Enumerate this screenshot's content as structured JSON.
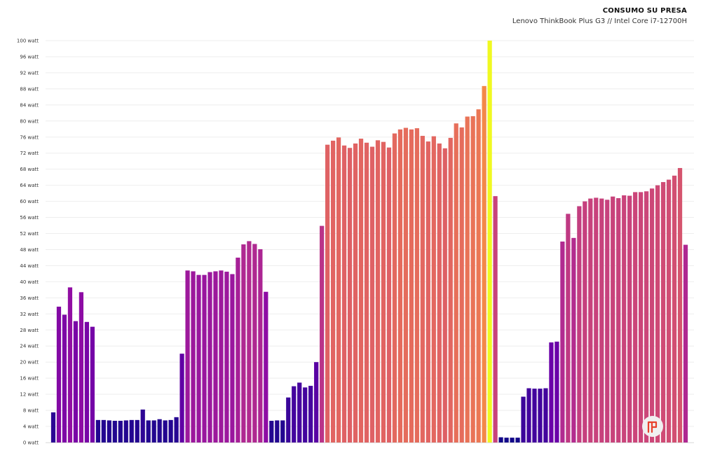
{
  "chart_data": {
    "type": "bar",
    "title": "CONSUMO SU PRESA",
    "subtitle": "Lenovo ThinkBook Plus G3 // Intel Core i7-12700H",
    "ylim": [
      0,
      100
    ],
    "y_ticks": [
      "0 watt",
      "4 watt",
      "8 watt",
      "12 watt",
      "16 watt",
      "20 watt",
      "24 watt",
      "28 watt",
      "32 watt",
      "36 watt",
      "40 watt",
      "44 watt",
      "48 watt",
      "52 watt",
      "56 watt",
      "60 watt",
      "64 watt",
      "68 watt",
      "72 watt",
      "76 watt",
      "80 watt",
      "84 watt",
      "88 watt",
      "92 watt",
      "96 watt",
      "100 watt"
    ],
    "unit": "watt",
    "grid": true,
    "legend": "none",
    "color_scale": "plasma",
    "values": [
      7.5,
      33.8,
      31.8,
      38.6,
      30.2,
      37.4,
      30.0,
      28.8,
      5.6,
      5.6,
      5.5,
      5.4,
      5.4,
      5.5,
      5.6,
      5.6,
      8.2,
      5.5,
      5.5,
      5.8,
      5.5,
      5.6,
      6.3,
      22.1,
      42.8,
      42.6,
      41.7,
      41.7,
      42.4,
      42.6,
      42.8,
      42.5,
      41.9,
      46.0,
      49.3,
      50.1,
      49.4,
      48.1,
      37.5,
      5.4,
      5.5,
      5.5,
      11.2,
      14.0,
      14.9,
      13.7,
      14.1,
      20.0,
      53.9,
      74.1,
      75.1,
      75.9,
      73.9,
      73.3,
      74.4,
      75.6,
      74.6,
      73.6,
      75.2,
      74.8,
      73.4,
      76.9,
      77.9,
      78.3,
      77.9,
      78.2,
      76.3,
      74.9,
      76.2,
      74.4,
      73.2,
      75.8,
      79.4,
      78.4,
      81.1,
      81.2,
      82.9,
      88.7,
      100.0,
      61.3,
      1.3,
      1.2,
      1.2,
      1.2,
      11.4,
      13.5,
      13.4,
      13.4,
      13.5,
      24.9,
      25.1,
      50.0,
      56.9,
      50.9,
      58.8,
      60.0,
      60.7,
      60.9,
      60.7,
      60.4,
      61.2,
      60.8,
      61.5,
      61.4,
      62.3,
      62.3,
      62.5,
      63.2,
      64.0,
      64.8,
      65.4,
      66.4,
      68.3,
      49.2
    ]
  },
  "logo": {
    "icon": "fp-logo-icon",
    "color": "#e8402b"
  }
}
